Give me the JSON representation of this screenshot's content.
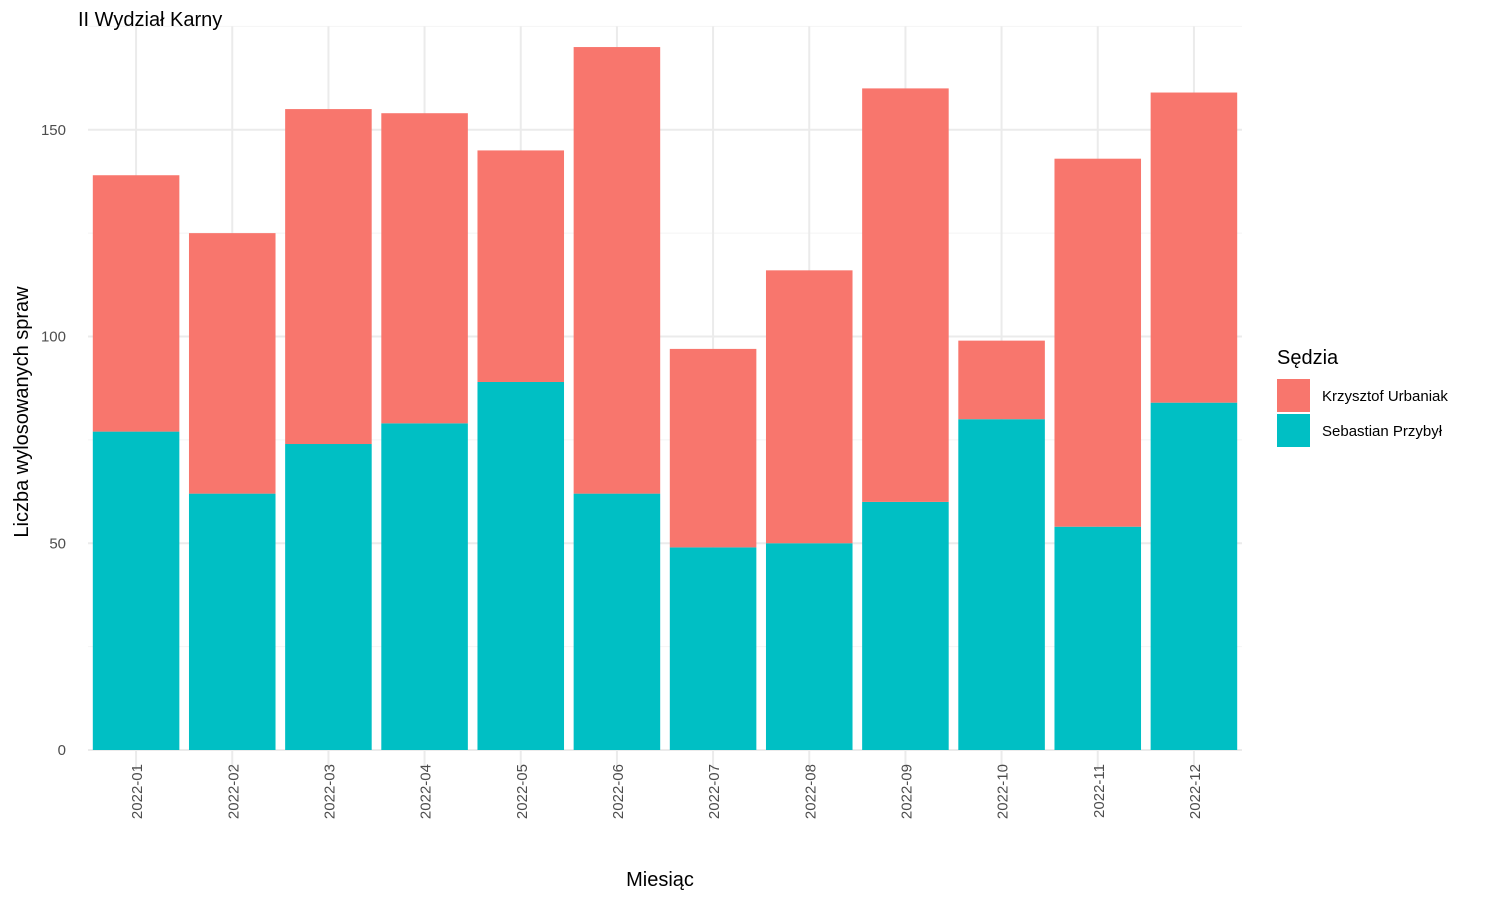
{
  "chart_data": {
    "type": "bar",
    "stacked": true,
    "title": "II Wydział Karny",
    "xlabel": "Miesiąc",
    "ylabel": "Liczba wylosowanych spraw",
    "ylim": [
      0,
      175
    ],
    "yticks": [
      0,
      50,
      100,
      150
    ],
    "grid": true,
    "legend_position": "right",
    "legend_title": "Sędzia",
    "categories": [
      "2022-01",
      "2022-02",
      "2022-03",
      "2022-04",
      "2022-05",
      "2022-06",
      "2022-07",
      "2022-08",
      "2022-09",
      "2022-10",
      "2022-11",
      "2022-12"
    ],
    "series": [
      {
        "name": "Krzysztof Urbaniak",
        "color": "#F8766D",
        "values": [
          62,
          63,
          81,
          75,
          56,
          108,
          48,
          66,
          100,
          19,
          89,
          75
        ]
      },
      {
        "name": "Sebastian Przybył",
        "color": "#00BFC4",
        "values": [
          77,
          62,
          74,
          79,
          89,
          62,
          49,
          50,
          60,
          80,
          54,
          84
        ]
      }
    ]
  }
}
